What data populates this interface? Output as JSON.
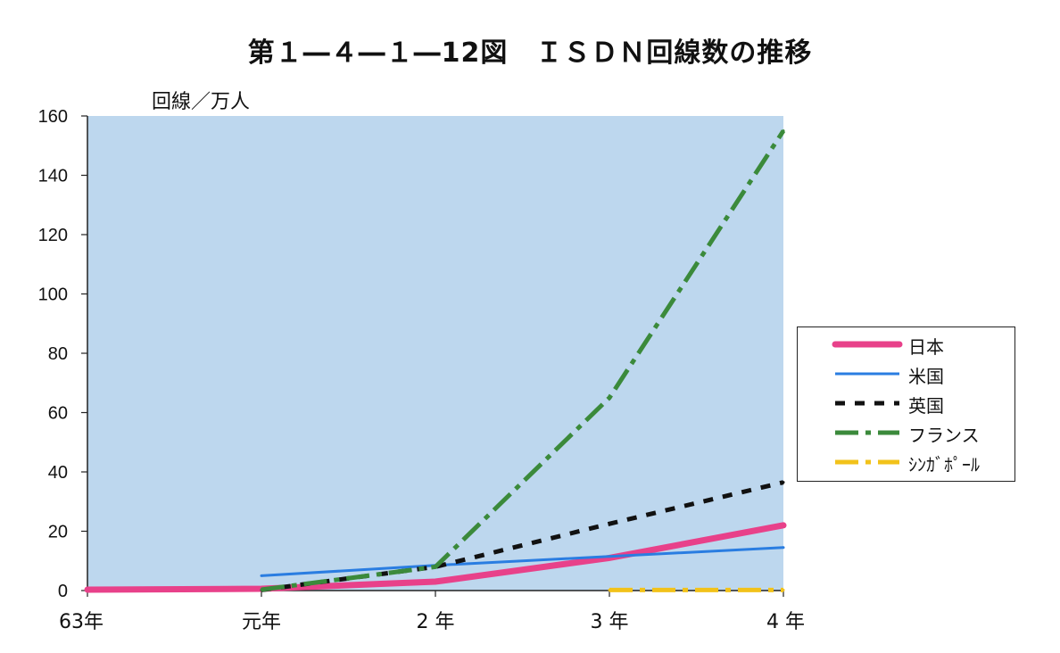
{
  "chart_data": {
    "type": "line",
    "title": "第１―４―１―12図　ＩＳＤＮ回線数の推移",
    "ylabel": "回線／万人",
    "xlabel": "",
    "categories": [
      "63年",
      "元年",
      "2 年",
      "3 年",
      "4 年"
    ],
    "ylim": [
      0,
      160
    ],
    "yticks": [
      "0",
      "20",
      "40",
      "60",
      "80",
      "100",
      "120",
      "140",
      "160"
    ],
    "series": [
      {
        "name": "日本",
        "color": "#e8418a",
        "style": "solid-thick",
        "points": [
          [
            0,
            0.3
          ],
          [
            1,
            0.6
          ],
          [
            2,
            3.0
          ],
          [
            3,
            11.0
          ],
          [
            4,
            22.0
          ]
        ]
      },
      {
        "name": "米国",
        "color": "#2a7de1",
        "style": "solid-thin",
        "points": [
          [
            1,
            5.0
          ],
          [
            2,
            8.5
          ],
          [
            3,
            11.5
          ],
          [
            4,
            14.5
          ]
        ]
      },
      {
        "name": "英国",
        "color": "#111111",
        "style": "dashed",
        "points": [
          [
            1,
            0.2
          ],
          [
            2,
            8.0
          ],
          [
            3,
            22.5
          ],
          [
            4,
            36.5
          ]
        ]
      },
      {
        "name": "フランス",
        "color": "#3b8a3b",
        "style": "dashdot",
        "points": [
          [
            1,
            0.3
          ],
          [
            2,
            8.0
          ],
          [
            3,
            65.0
          ],
          [
            4,
            155.0
          ]
        ]
      },
      {
        "name": "ｼﾝｶﾞﾎﾟｰﾙ",
        "color": "#f2c21a",
        "style": "dashdot",
        "points": [
          [
            3,
            0.2
          ],
          [
            4,
            0.2
          ]
        ]
      }
    ]
  },
  "colors": {
    "plot_background": "#bdd7ee"
  }
}
